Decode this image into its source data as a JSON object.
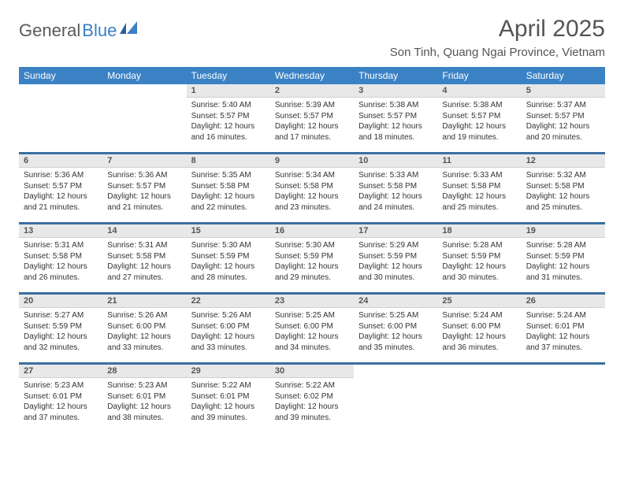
{
  "brand": {
    "part1": "General",
    "part2": "Blue"
  },
  "title": "April 2025",
  "location": "Son Tinh, Quang Ngai Province, Vietnam",
  "colors": {
    "header_bg": "#3b82c4",
    "header_text": "#ffffff",
    "daynum_bg": "#e8e8e8",
    "sep": "#3b6ea0",
    "logo_gray": "#5a5a5a",
    "logo_blue": "#3b7fc4"
  },
  "weekdays": [
    "Sunday",
    "Monday",
    "Tuesday",
    "Wednesday",
    "Thursday",
    "Friday",
    "Saturday"
  ],
  "weeks": [
    [
      null,
      null,
      {
        "n": "1",
        "sr": "5:40 AM",
        "ss": "5:57 PM",
        "dl": "12 hours and 16 minutes."
      },
      {
        "n": "2",
        "sr": "5:39 AM",
        "ss": "5:57 PM",
        "dl": "12 hours and 17 minutes."
      },
      {
        "n": "3",
        "sr": "5:38 AM",
        "ss": "5:57 PM",
        "dl": "12 hours and 18 minutes."
      },
      {
        "n": "4",
        "sr": "5:38 AM",
        "ss": "5:57 PM",
        "dl": "12 hours and 19 minutes."
      },
      {
        "n": "5",
        "sr": "5:37 AM",
        "ss": "5:57 PM",
        "dl": "12 hours and 20 minutes."
      }
    ],
    [
      {
        "n": "6",
        "sr": "5:36 AM",
        "ss": "5:57 PM",
        "dl": "12 hours and 21 minutes."
      },
      {
        "n": "7",
        "sr": "5:36 AM",
        "ss": "5:57 PM",
        "dl": "12 hours and 21 minutes."
      },
      {
        "n": "8",
        "sr": "5:35 AM",
        "ss": "5:58 PM",
        "dl": "12 hours and 22 minutes."
      },
      {
        "n": "9",
        "sr": "5:34 AM",
        "ss": "5:58 PM",
        "dl": "12 hours and 23 minutes."
      },
      {
        "n": "10",
        "sr": "5:33 AM",
        "ss": "5:58 PM",
        "dl": "12 hours and 24 minutes."
      },
      {
        "n": "11",
        "sr": "5:33 AM",
        "ss": "5:58 PM",
        "dl": "12 hours and 25 minutes."
      },
      {
        "n": "12",
        "sr": "5:32 AM",
        "ss": "5:58 PM",
        "dl": "12 hours and 25 minutes."
      }
    ],
    [
      {
        "n": "13",
        "sr": "5:31 AM",
        "ss": "5:58 PM",
        "dl": "12 hours and 26 minutes."
      },
      {
        "n": "14",
        "sr": "5:31 AM",
        "ss": "5:58 PM",
        "dl": "12 hours and 27 minutes."
      },
      {
        "n": "15",
        "sr": "5:30 AM",
        "ss": "5:59 PM",
        "dl": "12 hours and 28 minutes."
      },
      {
        "n": "16",
        "sr": "5:30 AM",
        "ss": "5:59 PM",
        "dl": "12 hours and 29 minutes."
      },
      {
        "n": "17",
        "sr": "5:29 AM",
        "ss": "5:59 PM",
        "dl": "12 hours and 30 minutes."
      },
      {
        "n": "18",
        "sr": "5:28 AM",
        "ss": "5:59 PM",
        "dl": "12 hours and 30 minutes."
      },
      {
        "n": "19",
        "sr": "5:28 AM",
        "ss": "5:59 PM",
        "dl": "12 hours and 31 minutes."
      }
    ],
    [
      {
        "n": "20",
        "sr": "5:27 AM",
        "ss": "5:59 PM",
        "dl": "12 hours and 32 minutes."
      },
      {
        "n": "21",
        "sr": "5:26 AM",
        "ss": "6:00 PM",
        "dl": "12 hours and 33 minutes."
      },
      {
        "n": "22",
        "sr": "5:26 AM",
        "ss": "6:00 PM",
        "dl": "12 hours and 33 minutes."
      },
      {
        "n": "23",
        "sr": "5:25 AM",
        "ss": "6:00 PM",
        "dl": "12 hours and 34 minutes."
      },
      {
        "n": "24",
        "sr": "5:25 AM",
        "ss": "6:00 PM",
        "dl": "12 hours and 35 minutes."
      },
      {
        "n": "25",
        "sr": "5:24 AM",
        "ss": "6:00 PM",
        "dl": "12 hours and 36 minutes."
      },
      {
        "n": "26",
        "sr": "5:24 AM",
        "ss": "6:01 PM",
        "dl": "12 hours and 37 minutes."
      }
    ],
    [
      {
        "n": "27",
        "sr": "5:23 AM",
        "ss": "6:01 PM",
        "dl": "12 hours and 37 minutes."
      },
      {
        "n": "28",
        "sr": "5:23 AM",
        "ss": "6:01 PM",
        "dl": "12 hours and 38 minutes."
      },
      {
        "n": "29",
        "sr": "5:22 AM",
        "ss": "6:01 PM",
        "dl": "12 hours and 39 minutes."
      },
      {
        "n": "30",
        "sr": "5:22 AM",
        "ss": "6:02 PM",
        "dl": "12 hours and 39 minutes."
      },
      null,
      null,
      null
    ]
  ],
  "labels": {
    "sunrise": "Sunrise:",
    "sunset": "Sunset:",
    "daylight": "Daylight:"
  }
}
